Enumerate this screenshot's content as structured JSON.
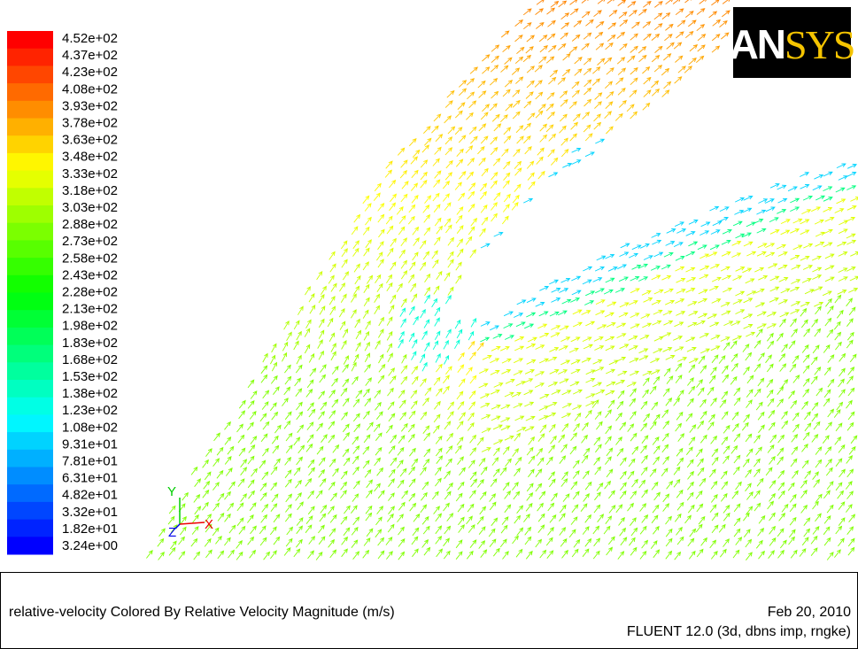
{
  "legend": {
    "labels": [
      "4.52e+02",
      "4.37e+02",
      "4.23e+02",
      "4.08e+02",
      "3.93e+02",
      "3.78e+02",
      "3.63e+02",
      "3.48e+02",
      "3.33e+02",
      "3.18e+02",
      "3.03e+02",
      "2.88e+02",
      "2.73e+02",
      "2.58e+02",
      "2.43e+02",
      "2.28e+02",
      "2.13e+02",
      "1.98e+02",
      "1.83e+02",
      "1.68e+02",
      "1.53e+02",
      "1.38e+02",
      "1.23e+02",
      "1.08e+02",
      "9.31e+01",
      "7.81e+01",
      "6.31e+01",
      "4.82e+01",
      "3.32e+01",
      "1.82e+01",
      "3.24e+00"
    ]
  },
  "logo": {
    "part1": "AN",
    "part2": "SYS"
  },
  "triad": {
    "y": "Y",
    "x": "X",
    "z": "Z"
  },
  "footer": {
    "description": "relative-velocity Colored By Relative Velocity Magnitude (m/s)",
    "date": "Feb 20, 2010",
    "version": "FLUENT 12.0 (3d, dbns imp, rngke)"
  }
}
